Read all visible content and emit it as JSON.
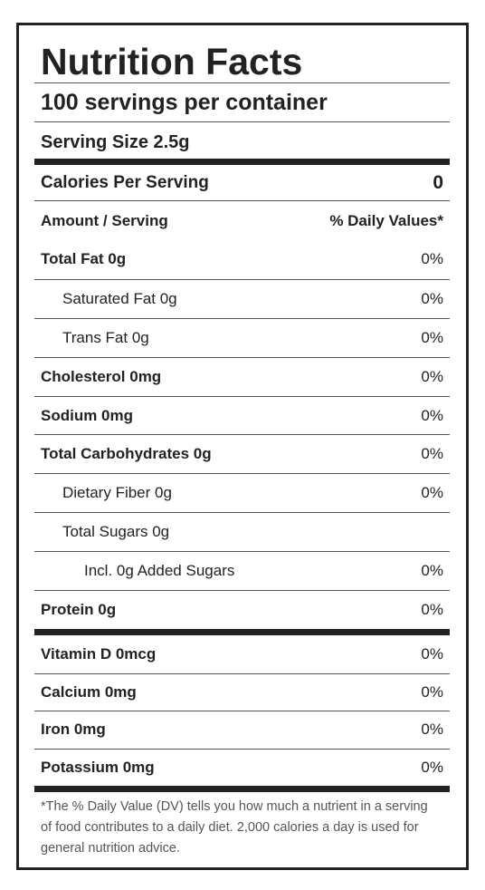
{
  "title": "Nutrition Facts",
  "servings": "100 servings per container",
  "serving_size": "Serving Size 2.5g",
  "calories": {
    "label": "Calories Per Serving",
    "value": "0"
  },
  "header": {
    "amount": "Amount / Serving",
    "daily": "% Daily Values*"
  },
  "nutrients": [
    {
      "label": "Total Fat 0g",
      "dv": "0%",
      "level": 0
    },
    {
      "label": "Saturated Fat 0g",
      "dv": "0%",
      "level": 1
    },
    {
      "label": "Trans Fat 0g",
      "dv": "0%",
      "level": 1
    },
    {
      "label": "Cholesterol 0mg",
      "dv": "0%",
      "level": 0
    },
    {
      "label": "Sodium 0mg",
      "dv": "0%",
      "level": 0
    },
    {
      "label": "Total Carbohydrates 0g",
      "dv": "0%",
      "level": 0
    },
    {
      "label": "Dietary Fiber 0g",
      "dv": "0%",
      "level": 1
    },
    {
      "label": "Total Sugars 0g",
      "level": 1
    },
    {
      "label": "Incl. 0g Added Sugars",
      "dv": "0%",
      "level": 2
    },
    {
      "label": "Protein 0g",
      "dv": "0%",
      "level": 0
    }
  ],
  "vitamins": [
    {
      "label": "Vitamin D 0mcg",
      "dv": "0%"
    },
    {
      "label": "Calcium 0mg",
      "dv": "0%"
    },
    {
      "label": "Iron 0mg",
      "dv": "0%"
    },
    {
      "label": "Potassium 0mg",
      "dv": "0%"
    }
  ],
  "footnote": "*The % Daily Value (DV) tells you how much a nutrient in a serving of food contributes to a daily diet. 2,000 calories a day is used for general nutrition advice."
}
